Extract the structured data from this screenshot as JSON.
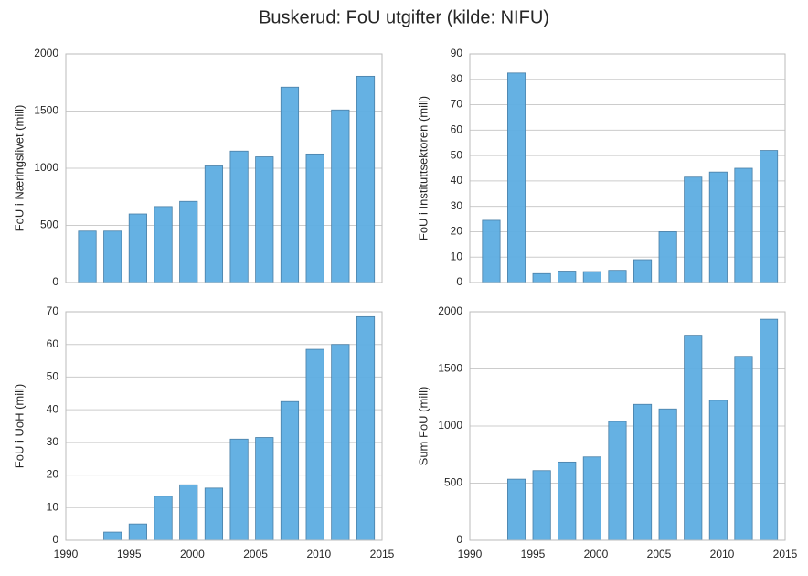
{
  "title": "Buskerud: FoU utgifter (kilde: NIFU)",
  "chart_data": [
    {
      "type": "bar",
      "ylabel": "FoU i Næringslivet (mill)",
      "color": "#5dade2",
      "grid": true,
      "x": [
        1991,
        1993,
        1995,
        1997,
        1999,
        2001,
        2003,
        2005,
        2007,
        2009,
        2011,
        2013
      ],
      "values": [
        450,
        450,
        600,
        665,
        710,
        1020,
        1150,
        1100,
        1710,
        1125,
        1510,
        1805
      ],
      "xlim": [
        1990,
        2015
      ],
      "ylim": [
        0,
        2000
      ],
      "yticks": [
        0,
        500,
        1000,
        1500,
        2000
      ]
    },
    {
      "type": "bar",
      "ylabel": "FoU i Instituttsektoren (mill)",
      "color": "#5dade2",
      "grid": true,
      "x": [
        1991,
        1993,
        1995,
        1997,
        1999,
        2001,
        2003,
        2005,
        2007,
        2009,
        2011,
        2013
      ],
      "values": [
        24.5,
        82.5,
        3.5,
        4.5,
        4.3,
        4.8,
        9,
        20,
        41.5,
        43.5,
        45,
        52
      ],
      "xlim": [
        1990,
        2015
      ],
      "ylim": [
        0,
        90
      ],
      "yticks": [
        0,
        10,
        20,
        30,
        40,
        50,
        60,
        70,
        80,
        90
      ]
    },
    {
      "type": "bar",
      "ylabel": "FoU i UoH (mill)",
      "color": "#5dade2",
      "grid": true,
      "x": [
        1991,
        1993,
        1995,
        1997,
        1999,
        2001,
        2003,
        2005,
        2007,
        2009,
        2011,
        2013
      ],
      "values": [
        null,
        2.5,
        5,
        13.5,
        17,
        16,
        31,
        31.5,
        42.5,
        58.5,
        60,
        68.5
      ],
      "xlim": [
        1990,
        2015
      ],
      "xticks": [
        1990,
        1995,
        2000,
        2005,
        2010,
        2015
      ],
      "ylim": [
        0,
        70
      ],
      "yticks": [
        0,
        10,
        20,
        30,
        40,
        50,
        60,
        70
      ]
    },
    {
      "type": "bar",
      "ylabel": "Sum FoU (mill)",
      "color": "#5dade2",
      "grid": true,
      "x": [
        1991,
        1993,
        1995,
        1997,
        1999,
        2001,
        2003,
        2005,
        2007,
        2009,
        2011,
        2013
      ],
      "values": [
        null,
        535,
        610,
        685,
        730,
        1040,
        1190,
        1150,
        1795,
        1225,
        1610,
        1935
      ],
      "xlim": [
        1990,
        2015
      ],
      "xticks": [
        1990,
        1995,
        2000,
        2005,
        2010,
        2015
      ],
      "ylim": [
        0,
        2000
      ],
      "yticks": [
        0,
        500,
        1000,
        1500,
        2000
      ]
    }
  ]
}
